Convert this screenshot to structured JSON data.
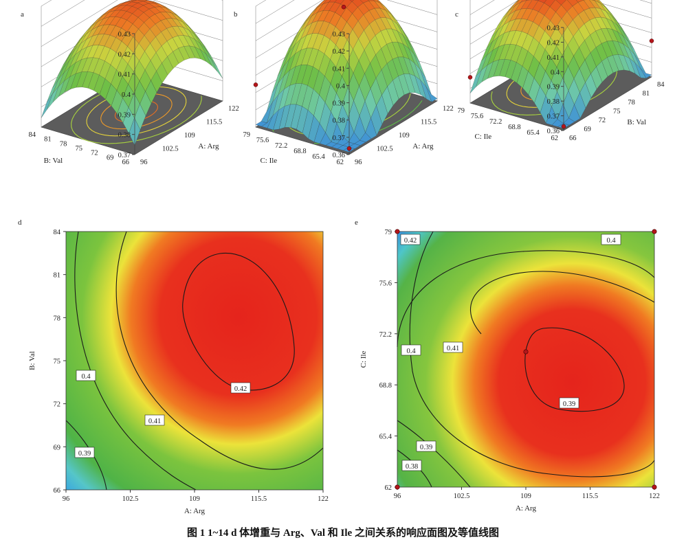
{
  "caption": "图 1  1~14 d 体增重与 Arg、Val 和 Ile 之间关系的响应面图及等值线图",
  "colors": {
    "red": "#e8261e",
    "yellow": "#ece43a",
    "green": "#5cba3c",
    "cyan": "#4ec8e6",
    "blue": "#2a3fa8",
    "floor": "#5a5a5a",
    "contour_floor_inner": "#e87a20"
  },
  "chart_data": [
    {
      "type": "surface3d",
      "label": "a",
      "z_ticks": [
        "0.43",
        "0.42",
        "0.41",
        "0.4",
        "0.39",
        "0.38",
        "0.37"
      ],
      "x_axis": {
        "name": "A: Arg",
        "ticks": [
          "96",
          "102.5",
          "109",
          "115.5",
          "122"
        ]
      },
      "y_axis": {
        "name": "B: Val",
        "ticks": [
          "66",
          "69",
          "72",
          "75",
          "78",
          "81",
          "84"
        ]
      }
    },
    {
      "type": "surface3d",
      "label": "b",
      "z_ticks": [
        "0.43",
        "0.42",
        "0.41",
        "0.4",
        "0.39",
        "0.38",
        "0.37",
        "0.36"
      ],
      "x_axis": {
        "name": "A: Arg",
        "ticks": [
          "96",
          "102.5",
          "109",
          "115.5",
          "122"
        ]
      },
      "y_axis": {
        "name": "C: Ile",
        "ticks": [
          "62",
          "65.4",
          "68.8",
          "72.2",
          "75.6",
          "79"
        ]
      }
    },
    {
      "type": "surface3d",
      "label": "c",
      "z_ticks": [
        "0.43",
        "0.42",
        "0.41",
        "0.4",
        "0.39",
        "0.38",
        "0.37",
        "0.36"
      ],
      "x_axis": {
        "name": "B: Val",
        "ticks": [
          "66",
          "69",
          "72",
          "75",
          "78",
          "81",
          "84"
        ]
      },
      "y_axis": {
        "name": "C: Ile",
        "ticks": [
          "62",
          "65.4",
          "68.8",
          "72.2",
          "75.6",
          "79"
        ]
      }
    },
    {
      "type": "heatmap",
      "label": "d",
      "xlabel": "A: Arg",
      "ylabel": "B: Val",
      "xlim": [
        96,
        122
      ],
      "ylim": [
        66,
        84
      ],
      "x_ticks": [
        "96",
        "102.5",
        "109",
        "115.5",
        "122"
      ],
      "y_ticks": [
        "66",
        "69",
        "72",
        "75",
        "78",
        "81",
        "84"
      ],
      "contour_labels": [
        "0.39",
        "0.4",
        "0.41",
        "0.42"
      ]
    },
    {
      "type": "heatmap",
      "label": "e",
      "xlabel": "A: Arg",
      "ylabel": "C: Ile",
      "xlim": [
        96,
        122
      ],
      "ylim": [
        62,
        79
      ],
      "x_ticks": [
        "96",
        "102.5",
        "109",
        "115.5",
        "122"
      ],
      "y_ticks": [
        "62",
        "65.4",
        "68.8",
        "72.2",
        "75.6",
        "79"
      ],
      "contour_labels": [
        "0.38",
        "0.39",
        "0.4",
        "0.41",
        "0.42",
        "0.39",
        "0.4"
      ]
    }
  ]
}
